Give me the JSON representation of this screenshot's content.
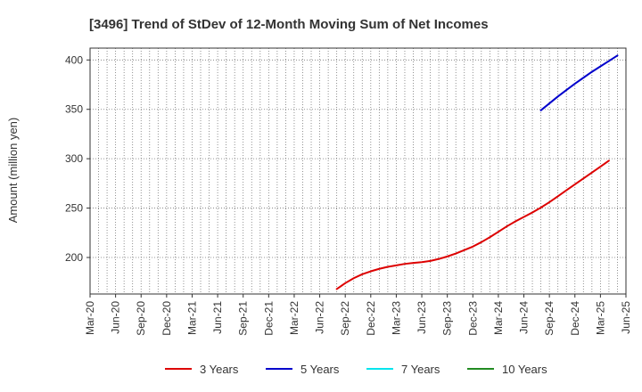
{
  "chart_data": {
    "type": "line",
    "title": "[3496]  Trend of StDev of 12-Month Moving Sum of Net Incomes",
    "xlabel": "",
    "ylabel": "Amount (million yen)",
    "x_ticks": [
      "Mar-20",
      "Jun-20",
      "Sep-20",
      "Dec-20",
      "Mar-21",
      "Jun-21",
      "Sep-21",
      "Dec-21",
      "Mar-22",
      "Jun-22",
      "Sep-22",
      "Dec-22",
      "Mar-23",
      "Jun-23",
      "Sep-23",
      "Dec-23",
      "Mar-24",
      "Jun-24",
      "Sep-24",
      "Dec-24",
      "Mar-25",
      "Jun-25"
    ],
    "y_ticks": [
      200,
      250,
      300,
      350,
      400
    ],
    "ylim": [
      163,
      412
    ],
    "grid": true,
    "legend_position": "bottom",
    "series": [
      {
        "name": "3 Years",
        "color": "#dd0000",
        "points": [
          [
            "Aug-22",
            168
          ],
          [
            "Sep-22",
            174
          ],
          [
            "Oct-22",
            179
          ],
          [
            "Nov-22",
            183
          ],
          [
            "Dec-22",
            186
          ],
          [
            "Jan-23",
            188.5
          ],
          [
            "Feb-23",
            190.5
          ],
          [
            "Mar-23",
            192
          ],
          [
            "Apr-23",
            193.5
          ],
          [
            "May-23",
            194.5
          ],
          [
            "Jun-23",
            195.3
          ],
          [
            "Jul-23",
            196.5
          ],
          [
            "Aug-23",
            198.5
          ],
          [
            "Sep-23",
            201
          ],
          [
            "Oct-23",
            204
          ],
          [
            "Nov-23",
            207.5
          ],
          [
            "Dec-23",
            211
          ],
          [
            "Jan-24",
            215.5
          ],
          [
            "Feb-24",
            220.5
          ],
          [
            "Mar-24",
            226
          ],
          [
            "Apr-24",
            231.5
          ],
          [
            "May-24",
            236.5
          ],
          [
            "Jun-24",
            241
          ],
          [
            "Jul-24",
            245.5
          ],
          [
            "Aug-24",
            250.5
          ],
          [
            "Sep-24",
            256
          ],
          [
            "Oct-24",
            262
          ],
          [
            "Nov-24",
            268
          ],
          [
            "Dec-24",
            274
          ],
          [
            "Jan-25",
            280
          ],
          [
            "Feb-25",
            286
          ],
          [
            "Mar-25",
            292
          ],
          [
            "Apr-25",
            298
          ]
        ]
      },
      {
        "name": "5 Years",
        "color": "#0000cc",
        "points": [
          [
            "Aug-24",
            349
          ],
          [
            "Sep-24",
            356
          ],
          [
            "Oct-24",
            363
          ],
          [
            "Nov-24",
            369.5
          ],
          [
            "Dec-24",
            376
          ],
          [
            "Jan-25",
            382
          ],
          [
            "Feb-25",
            388
          ],
          [
            "Mar-25",
            393.5
          ],
          [
            "Apr-25",
            399
          ],
          [
            "May-25",
            404.5
          ]
        ]
      },
      {
        "name": "7 Years",
        "color": "#00e5ee",
        "points": []
      },
      {
        "name": "10 Years",
        "color": "#228b22",
        "points": []
      }
    ]
  }
}
